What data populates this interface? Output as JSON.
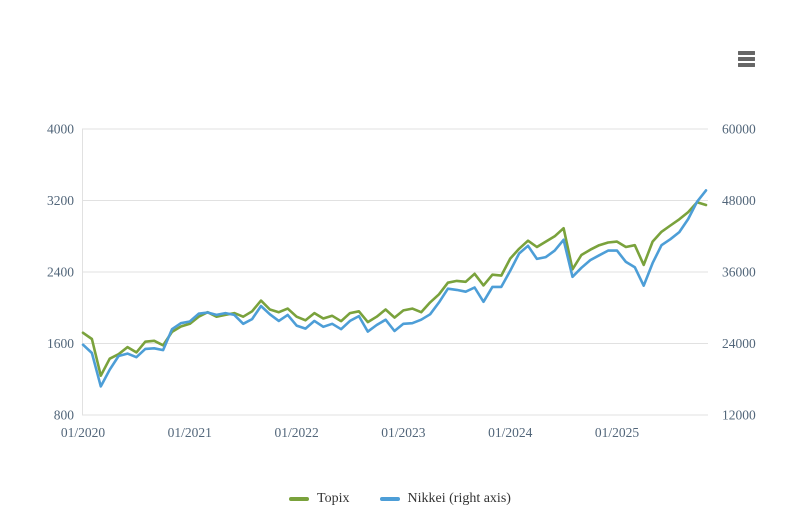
{
  "toolbar": {
    "context_menu_icon": "hamburger-menu-icon"
  },
  "colors": {
    "topix_line": "#7aa23c",
    "nikkei_line": "#4d9ed7",
    "grid": "#e1e1e1",
    "axis_label": "#52667a",
    "legend_text": "#333333",
    "menu_icon": "#666666",
    "background": "#ffffff"
  },
  "chart_data": {
    "type": "line",
    "title": "",
    "xlabel": "",
    "ylabel_left": "",
    "ylabel_right": "",
    "grid": "horizontal-only",
    "legend_position": "bottom-center",
    "x_range": {
      "start": "01/2020",
      "end": "11/2025",
      "frequency": "monthly"
    },
    "x_ticks": [
      {
        "label": "01/2020",
        "month_index": 0
      },
      {
        "label": "01/2021",
        "month_index": 12
      },
      {
        "label": "01/2022",
        "month_index": 24
      },
      {
        "label": "01/2023",
        "month_index": 36
      },
      {
        "label": "01/2024",
        "month_index": 48
      },
      {
        "label": "01/2025",
        "month_index": 60
      }
    ],
    "left_axis": {
      "min": 800,
      "max": 4000,
      "ticks": [
        800,
        1600,
        2400,
        3200,
        4000
      ]
    },
    "right_axis": {
      "min": 12000,
      "max": 60000,
      "ticks": [
        12000,
        24000,
        36000,
        48000,
        60000
      ]
    },
    "series": [
      {
        "name": "Topix",
        "axis": "left",
        "color": "#7aa23c",
        "values": [
          1720,
          1650,
          1240,
          1430,
          1480,
          1560,
          1500,
          1620,
          1630,
          1580,
          1730,
          1790,
          1820,
          1900,
          1950,
          1900,
          1920,
          1940,
          1900,
          1960,
          2080,
          1980,
          1950,
          1990,
          1900,
          1860,
          1940,
          1880,
          1910,
          1850,
          1940,
          1960,
          1840,
          1900,
          1980,
          1890,
          1970,
          1990,
          1950,
          2060,
          2150,
          2280,
          2300,
          2290,
          2380,
          2250,
          2370,
          2360,
          2550,
          2660,
          2750,
          2680,
          2740,
          2800,
          2890,
          2430,
          2590,
          2650,
          2700,
          2730,
          2740,
          2680,
          2700,
          2480,
          2740,
          2850,
          2920,
          2990,
          3070,
          3180,
          3150
        ]
      },
      {
        "name": "Nikkei (right axis)",
        "axis": "right",
        "color": "#4d9ed7",
        "values": [
          23800,
          22400,
          16800,
          19600,
          21900,
          22300,
          21700,
          23100,
          23200,
          22900,
          26400,
          27400,
          27700,
          29000,
          29200,
          28800,
          29100,
          28800,
          27300,
          28100,
          30300,
          28900,
          27800,
          28800,
          27000,
          26500,
          27800,
          26800,
          27300,
          26400,
          27800,
          28600,
          26000,
          27100,
          28000,
          26100,
          27300,
          27400,
          28000,
          28900,
          30900,
          33200,
          33000,
          32700,
          33400,
          31000,
          33500,
          33500,
          36200,
          39100,
          40400,
          38200,
          38500,
          39600,
          41400,
          35200,
          36700,
          38000,
          38800,
          39600,
          39600,
          37700,
          36800,
          33700,
          37500,
          40500,
          41500,
          42700,
          44900,
          47800,
          49700
        ]
      }
    ]
  }
}
